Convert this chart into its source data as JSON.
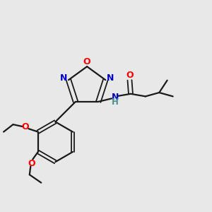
{
  "background_color": "#e8e8e8",
  "bond_color": "#1a1a1a",
  "atom_colors": {
    "O": "#ff0000",
    "N": "#0000cc",
    "C": "#1a1a1a",
    "H": "#4a9090"
  },
  "figsize": [
    3.0,
    3.0
  ],
  "dpi": 100
}
